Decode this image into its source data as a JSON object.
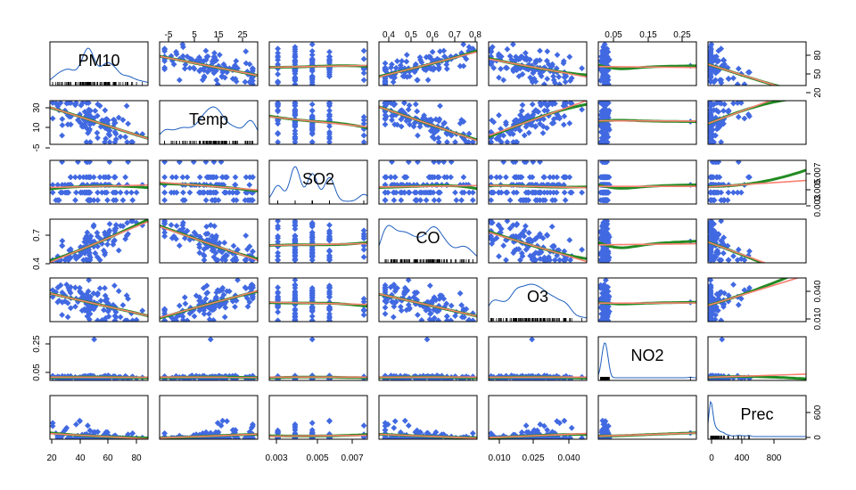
{
  "chart_data": {
    "type": "scatter",
    "variables": [
      "PM10",
      "Temp",
      "SO2",
      "CO",
      "O3",
      "NO2",
      "Prec"
    ],
    "ranges": {
      "PM10": [
        20,
        90
      ],
      "Temp": [
        -8,
        31
      ],
      "SO2": [
        0.0025,
        0.0082
      ],
      "CO": [
        0.35,
        0.82
      ],
      "O3": [
        0.005,
        0.046
      ],
      "NO2": [
        0.0,
        0.33
      ],
      "Prec": [
        -30,
        1120
      ]
    },
    "ticks": {
      "PM10": [
        "20",
        "40",
        "60",
        "80"
      ],
      "Temp": [
        "-5",
        "5",
        "15",
        "25"
      ],
      "SO2": [
        "0.003",
        "0.005",
        "0.007"
      ],
      "CO": [
        "0.4",
        "0.5",
        "0.6",
        "0.7",
        "0.8"
      ],
      "O3": [
        "0.010",
        "0.025",
        "0.040"
      ],
      "NO2": [
        "0.05",
        "0.15",
        "0.25"
      ],
      "Prec": [
        "0",
        "400",
        "800"
      ]
    },
    "left_ticks": {
      "Temp": [
        "-5",
        "10",
        "30"
      ],
      "CO": [
        "0.4",
        "0.7"
      ],
      "NO2": [
        "0.05",
        "0.25"
      ]
    },
    "right_ticks": {
      "PM10": [
        "20",
        "50",
        "80"
      ],
      "SO2": [
        "0.003",
        "0.005",
        "0.007"
      ],
      "O3": [
        "0.010",
        "0.040"
      ],
      "Prec": [
        "0",
        "600"
      ]
    },
    "top_ticks": {
      "Temp": [
        "-5",
        "5",
        "15",
        "25"
      ],
      "CO": [
        "0.4",
        "0.5",
        "0.6",
        "0.7",
        "0.8"
      ],
      "NO2": [
        "0.05",
        "0.15",
        "0.25"
      ]
    },
    "bottom_ticks": {
      "PM10": [
        "20",
        "40",
        "60",
        "80"
      ],
      "SO2": [
        "0.003",
        "0.005",
        "0.007"
      ],
      "O3": [
        "0.010",
        "0.025",
        "0.040"
      ],
      "Prec": [
        "0",
        "400",
        "800"
      ]
    },
    "grid": false,
    "colors": {
      "points": "#4169E1",
      "linear_fit": "#FA8072",
      "smooth_fit": "#228B22",
      "density": "#1f5fbf",
      "frame": "#000000"
    }
  }
}
